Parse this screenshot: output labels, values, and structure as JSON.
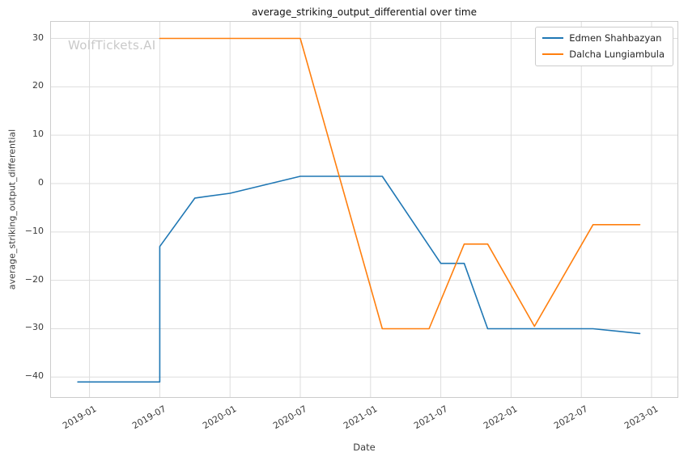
{
  "watermark": "WolfTickets.AI",
  "chart_data": {
    "type": "line",
    "title": "average_striking_output_differential over time",
    "xlabel": "Date",
    "ylabel": "average_striking_output_differential",
    "legend_position": "upper right",
    "grid": true,
    "background_color": "#ffffff",
    "grid_color": "#dddddd",
    "spine_color": "#cccccc",
    "x_tick_labels": [
      "2019-01",
      "2019-07",
      "2020-01",
      "2020-07",
      "2021-01",
      "2021-07",
      "2022-01",
      "2022-07",
      "2023-01"
    ],
    "y_ticks": [
      -40,
      -30,
      -20,
      -10,
      0,
      10,
      20,
      30
    ],
    "y_tick_labels": [
      "−40",
      "−30",
      "−20",
      "−10",
      "0",
      "10",
      "20",
      "30"
    ],
    "x_range": [
      2018.72,
      2023.19
    ],
    "y_range": [
      -44.3,
      33.6
    ],
    "series": [
      {
        "name": "Edmen Shahbazyan",
        "color": "#1f77b4",
        "points": [
          [
            "2018-12",
            -41
          ],
          [
            "2019-07",
            -41
          ],
          [
            "2019-07",
            -13
          ],
          [
            "2019-10",
            -3
          ],
          [
            "2020-01",
            -2
          ],
          [
            "2020-07",
            1.5
          ],
          [
            "2021-02",
            1.5
          ],
          [
            "2021-07",
            -16.5
          ],
          [
            "2021-09",
            -16.5
          ],
          [
            "2021-11",
            -30
          ],
          [
            "2022-08",
            -30
          ],
          [
            "2022-12",
            -31
          ]
        ]
      },
      {
        "name": "Dalcha Lungiambula",
        "color": "#ff7f0e",
        "points": [
          [
            "2019-07",
            30
          ],
          [
            "2020-07",
            30
          ],
          [
            "2021-02",
            -30
          ],
          [
            "2021-06",
            -30
          ],
          [
            "2021-09",
            -12.5
          ],
          [
            "2021-11",
            -12.5
          ],
          [
            "2022-03",
            -29.5
          ],
          [
            "2022-08",
            -8.5
          ],
          [
            "2022-12",
            -8.5
          ]
        ]
      }
    ]
  }
}
